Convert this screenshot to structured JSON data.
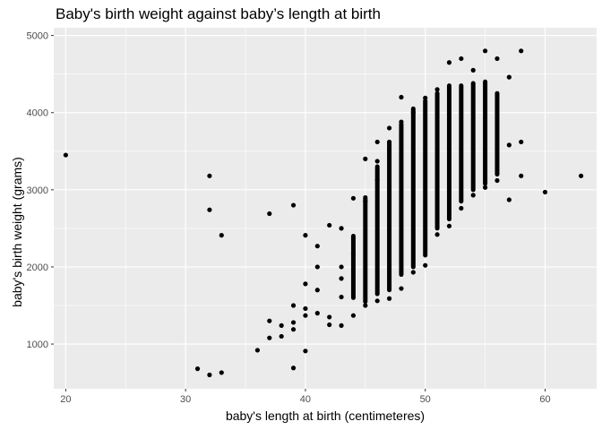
{
  "chart_data": {
    "type": "scatter",
    "title": "Baby's birth weight against baby’s length at birth",
    "xlabel": "baby's length at birth (centimeteres)",
    "ylabel": "baby's birth weight (grams)",
    "xlim": [
      19,
      64.3
    ],
    "ylim": [
      420,
      5100
    ],
    "x_ticks": [
      20,
      30,
      40,
      50,
      60
    ],
    "y_ticks": [
      1000,
      2000,
      3000,
      4000,
      5000
    ],
    "grid": true,
    "legend": "none",
    "colors": {
      "panel": "#ebebeb",
      "grid": "#ffffff",
      "point": "#000000",
      "tick_text": "#4d4d4d"
    },
    "points": [
      [
        20,
        3450
      ],
      [
        31,
        680
      ],
      [
        32,
        600
      ],
      [
        32,
        2740
      ],
      [
        32,
        3180
      ],
      [
        33,
        630
      ],
      [
        33,
        2410
      ],
      [
        36,
        920
      ],
      [
        37,
        1080
      ],
      [
        37,
        1300
      ],
      [
        37,
        2690
      ],
      [
        38,
        1100
      ],
      [
        38,
        1240
      ],
      [
        39,
        690
      ],
      [
        39,
        1190
      ],
      [
        39,
        1280
      ],
      [
        39,
        1500
      ],
      [
        39,
        2800
      ],
      [
        40,
        910
      ],
      [
        40,
        1370
      ],
      [
        40,
        1460
      ],
      [
        40,
        1780
      ],
      [
        40,
        2410
      ],
      [
        41,
        1400
      ],
      [
        41,
        1700
      ],
      [
        41,
        2000
      ],
      [
        41,
        2270
      ],
      [
        42,
        1250
      ],
      [
        42,
        1350
      ],
      [
        42,
        2540
      ],
      [
        43,
        1240
      ],
      [
        43,
        1610
      ],
      [
        43,
        1850
      ],
      [
        43,
        2000
      ],
      [
        43,
        2500
      ],
      [
        44,
        1370
      ],
      [
        44,
        2170
      ],
      [
        44,
        2890
      ],
      [
        45,
        1500
      ],
      [
        45,
        2850
      ],
      [
        45,
        3400
      ],
      [
        46,
        1560
      ],
      [
        46,
        3130
      ],
      [
        46,
        3370
      ],
      [
        46,
        3620
      ],
      [
        47,
        1590
      ],
      [
        47,
        3620
      ],
      [
        47,
        3800
      ],
      [
        48,
        1720
      ],
      [
        48,
        3880
      ],
      [
        48,
        4200
      ],
      [
        49,
        1930
      ],
      [
        49,
        4000
      ],
      [
        50,
        2020
      ],
      [
        50,
        4190
      ],
      [
        51,
        2420
      ],
      [
        51,
        4300
      ],
      [
        52,
        2530
      ],
      [
        52,
        4650
      ],
      [
        53,
        2760
      ],
      [
        53,
        4700
      ],
      [
        54,
        2930
      ],
      [
        54,
        4550
      ],
      [
        55,
        3030
      ],
      [
        55,
        4800
      ],
      [
        56,
        3120
      ],
      [
        56,
        4700
      ],
      [
        57,
        2870
      ],
      [
        57,
        3580
      ],
      [
        57,
        4460
      ],
      [
        58,
        3180
      ],
      [
        58,
        3620
      ],
      [
        58,
        4800
      ],
      [
        60,
        2970
      ],
      [
        63,
        3180
      ]
    ],
    "columns": [
      {
        "x": 44,
        "y": [
          1600,
          2400
        ]
      },
      {
        "x": 45,
        "y": [
          1550,
          2900
        ]
      },
      {
        "x": 46,
        "y": [
          1650,
          3300
        ]
      },
      {
        "x": 47,
        "y": [
          1700,
          3600
        ]
      },
      {
        "x": 48,
        "y": [
          1900,
          3850
        ]
      },
      {
        "x": 49,
        "y": [
          2000,
          4050
        ]
      },
      {
        "x": 50,
        "y": [
          2150,
          4150
        ]
      },
      {
        "x": 51,
        "y": [
          2500,
          4250
        ]
      },
      {
        "x": 52,
        "y": [
          2620,
          4350
        ]
      },
      {
        "x": 53,
        "y": [
          2850,
          4350
        ]
      },
      {
        "x": 54,
        "y": [
          3000,
          4380
        ]
      },
      {
        "x": 55,
        "y": [
          3080,
          4400
        ]
      },
      {
        "x": 56,
        "y": [
          3200,
          4250
        ]
      }
    ]
  }
}
